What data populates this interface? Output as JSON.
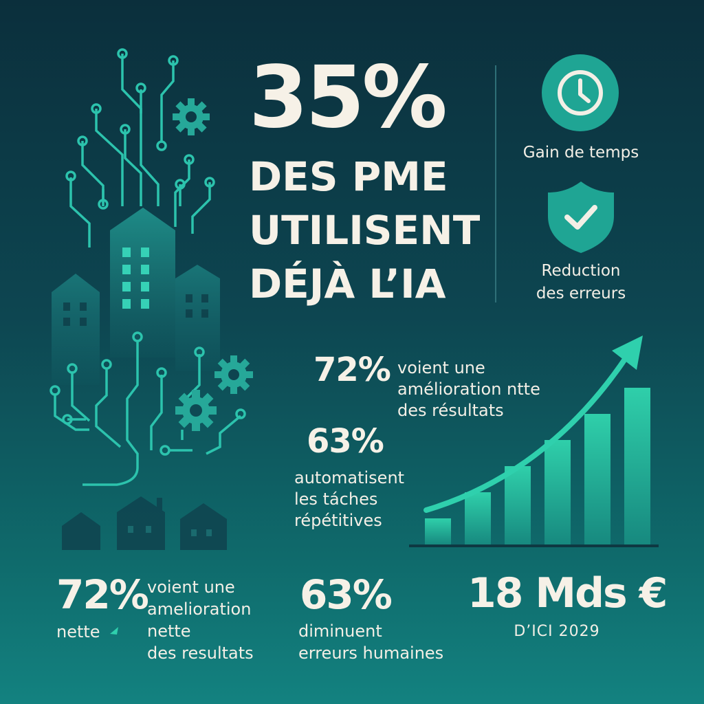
{
  "headline": {
    "percent": "35%",
    "line1": "DES PME",
    "line2": "UTILISENT",
    "line3": "DÉJÀ L’IA"
  },
  "benefits": [
    {
      "icon": "clock-icon",
      "label": "Gain de temps"
    },
    {
      "icon": "shield-check-icon",
      "label_line1": "Reduction",
      "label_line2": "des erreurs"
    }
  ],
  "middle_stats": [
    {
      "percent": "72%",
      "lines": [
        "voient une",
        "amélioration ntte",
        "des résultats"
      ]
    },
    {
      "percent": "63%",
      "lines": [
        "automatisent",
        "les táches",
        "répétitives"
      ]
    }
  ],
  "bottom_stats": [
    {
      "percent": "72%",
      "sub": "nette",
      "lines": [
        "voient une",
        "amelioration",
        "nette",
        "des resultats"
      ]
    },
    {
      "percent": "63%",
      "lines": [
        "diminuent",
        "erreurs humaines"
      ]
    },
    {
      "value": "18 Mds €",
      "sub": "D’ICI 2029"
    }
  ],
  "colors": {
    "background_top": "#0b2f3c",
    "background_bottom": "#138280",
    "accent": "#25b9a0",
    "text": "#f3efe6"
  },
  "chart_data": {
    "type": "bar",
    "categories": [
      "",
      "",
      "",
      "",
      "",
      ""
    ],
    "values": [
      2,
      4,
      6,
      8,
      10,
      12
    ],
    "trend_arrow": true
  }
}
